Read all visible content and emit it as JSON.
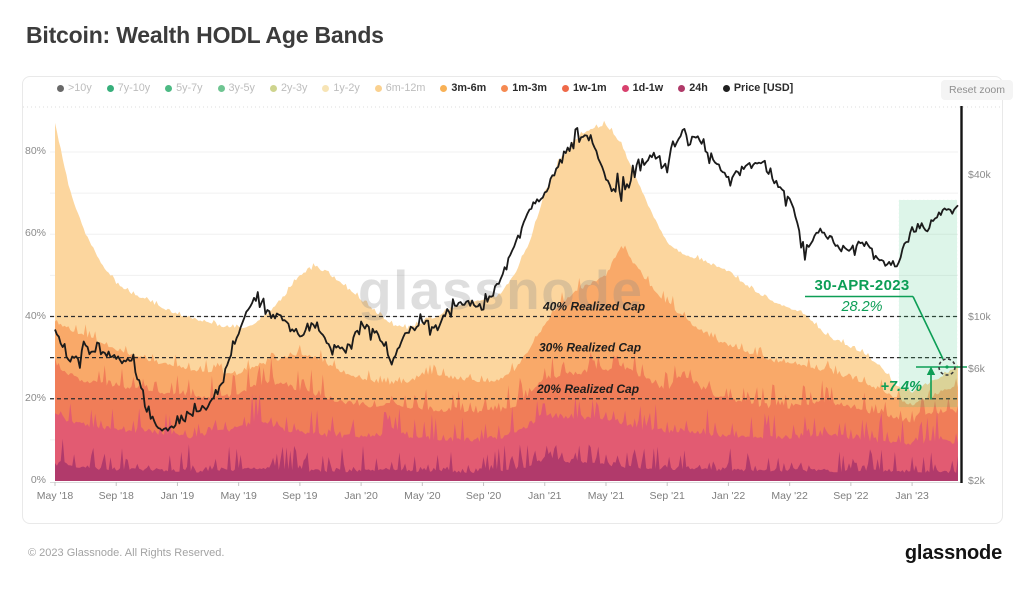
{
  "page": {
    "title": "Bitcoin: Wealth HODL Age Bands",
    "watermark": "glassnode",
    "footer_copyright": "© 2023 Glassnode. All Rights Reserved.",
    "footer_logo": "glassnode"
  },
  "toolbar": {
    "reset_zoom_label": "Reset zoom"
  },
  "legend": {
    "items": [
      {
        "label": ">10y",
        "color": "#4f4f4f",
        "active": false
      },
      {
        "label": "7y-10y",
        "color": "#14a164",
        "active": false
      },
      {
        "label": "5y-7y",
        "color": "#2eae6e",
        "active": false
      },
      {
        "label": "3y-5y",
        "color": "#56bb7f",
        "active": false
      },
      {
        "label": "2y-3y",
        "color": "#c6cc7a",
        "active": false
      },
      {
        "label": "1y-2y",
        "color": "#f6dfa8",
        "active": false
      },
      {
        "label": "6m-12m",
        "color": "#f9c97c",
        "active": false
      },
      {
        "label": "3m-6m",
        "color": "#f8b156",
        "active": true
      },
      {
        "label": "1m-3m",
        "color": "#f58a52",
        "active": true
      },
      {
        "label": "1w-1m",
        "color": "#ef6a4a",
        "active": true
      },
      {
        "label": "1d-1w",
        "color": "#d8416e",
        "active": true
      },
      {
        "label": "24h",
        "color": "#b03a69",
        "active": true
      },
      {
        "label": "Price [USD]",
        "color": "#1f1f1f",
        "active": true
      }
    ]
  },
  "annotations": {
    "accent_color": "#0d9e56",
    "highlight_color": "#35c77c",
    "realized_cap_lines": [
      {
        "pct": 40,
        "label": "40% Realized Cap"
      },
      {
        "pct": 30,
        "label": "30% Realized Cap"
      },
      {
        "pct": 20,
        "label": "20% Realized Cap"
      }
    ],
    "callout": {
      "date": "30-APR-2023",
      "value": "28.2%"
    },
    "delta": {
      "label": "+7.4%"
    }
  },
  "chart_data": {
    "type": "area",
    "stacked": true,
    "title": "Bitcoin: Wealth HODL Age Bands",
    "x_unit": "month",
    "x_range": [
      "May 2018",
      "Apr 2023"
    ],
    "x_ticks": [
      {
        "month": 0,
        "label": "May '18"
      },
      {
        "month": 4,
        "label": "Sep '18"
      },
      {
        "month": 8,
        "label": "Jan '19"
      },
      {
        "month": 12,
        "label": "May '19"
      },
      {
        "month": 16,
        "label": "Sep '19"
      },
      {
        "month": 20,
        "label": "Jan '20"
      },
      {
        "month": 24,
        "label": "May '20"
      },
      {
        "month": 28,
        "label": "Sep '20"
      },
      {
        "month": 32,
        "label": "Jan '21"
      },
      {
        "month": 36,
        "label": "May '21"
      },
      {
        "month": 40,
        "label": "Sep '21"
      },
      {
        "month": 44,
        "label": "Jan '22"
      },
      {
        "month": 48,
        "label": "May '22"
      },
      {
        "month": 52,
        "label": "Sep '22"
      },
      {
        "month": 56,
        "label": "Jan '23"
      }
    ],
    "y_left": {
      "unit": "% of Realized Cap",
      "range": [
        0,
        90
      ],
      "grid_step": 10,
      "ticks": [
        {
          "pct": 0,
          "label": "0%"
        },
        {
          "pct": 20,
          "label": "20%"
        },
        {
          "pct": 40,
          "label": "40%"
        },
        {
          "pct": 60,
          "label": "60%"
        },
        {
          "pct": 80,
          "label": "80%"
        }
      ]
    },
    "y_right": {
      "unit": "USD",
      "scale": "log",
      "range": [
        2000,
        76000
      ],
      "ticks": [
        {
          "usd": 2000,
          "label": "$2k"
        },
        {
          "usd": 6000,
          "label": "$6k"
        },
        {
          "usd": 10000,
          "label": "$10k"
        },
        {
          "usd": 40000,
          "label": "$40k"
        }
      ]
    },
    "series_note": "values are cumulative stack tops, % of realized cap, monthly May 2018 - Apr 2023, bottom band first",
    "series": [
      {
        "name": "24h",
        "color": "#b13a6b",
        "values": [
          4.0,
          3.6,
          3.3,
          3.0,
          2.8,
          2.7,
          2.8,
          2.6,
          2.5,
          2.4,
          2.4,
          2.5,
          2.8,
          3.0,
          2.9,
          2.7,
          2.6,
          2.5,
          2.4,
          2.3,
          2.5,
          2.4,
          2.8,
          2.5,
          2.4,
          2.4,
          2.3,
          2.3,
          2.2,
          2.4,
          2.8,
          3.5,
          5.5,
          5.0,
          4.5,
          4.2,
          4.0,
          3.6,
          3.2,
          3.0,
          2.9,
          3.0,
          2.9,
          2.7,
          2.6,
          2.6,
          2.5,
          2.4,
          2.6,
          2.5,
          2.7,
          2.4,
          2.3,
          2.3,
          2.6,
          2.3,
          2.2,
          2.4,
          2.2,
          2.0
        ]
      },
      {
        "name": "1d-1w",
        "color": "#e25b72",
        "values": [
          16,
          14.5,
          13.5,
          13,
          12.5,
          12,
          12.5,
          11.5,
          11,
          10.8,
          11.5,
          12,
          13,
          14,
          14,
          12.5,
          12,
          11.5,
          11,
          10.8,
          11,
          10.5,
          12.5,
          10.8,
          10.5,
          10.3,
          10,
          10,
          10,
          10.5,
          11.5,
          13.5,
          16,
          15.5,
          15,
          15,
          15,
          14,
          13,
          12.5,
          12,
          12.5,
          11.8,
          11.2,
          11,
          10.8,
          10.6,
          10.4,
          10.5,
          10.8,
          11.5,
          11,
          10.5,
          10,
          9.5,
          9.2,
          9,
          9.8,
          10,
          9
        ]
      },
      {
        "name": "1w-1m",
        "color": "#f07d58",
        "values": [
          28,
          25.5,
          24,
          23.5,
          23,
          22.5,
          22,
          21.5,
          21,
          20.5,
          20.3,
          20.5,
          21,
          23,
          24,
          23.5,
          22,
          21,
          20,
          18.8,
          18.5,
          18,
          19,
          17.8,
          17.5,
          17.2,
          17,
          16.8,
          16.5,
          17,
          18,
          21,
          25,
          25.5,
          26,
          26.5,
          27,
          28,
          26,
          24,
          22,
          26,
          23,
          21,
          20,
          19,
          18.2,
          18,
          18,
          18.5,
          19,
          18.5,
          18,
          17,
          16,
          15,
          14.5,
          16,
          17,
          17
        ]
      },
      {
        "name": "1m-3m",
        "color": "#f9a969",
        "values": [
          39,
          36.5,
          35,
          33.5,
          32,
          30.5,
          29.5,
          28.5,
          28,
          27,
          26.5,
          26,
          26,
          27.5,
          29,
          30,
          31,
          30,
          28,
          26,
          25,
          24,
          23.5,
          24,
          25.5,
          26,
          25,
          24.5,
          24,
          24.5,
          27,
          32,
          38,
          43,
          46,
          48,
          50,
          57,
          52,
          47,
          43,
          40,
          37,
          34.5,
          33,
          31.5,
          30,
          29,
          28.5,
          28,
          27,
          26,
          25,
          23.5,
          22,
          20,
          18.5,
          20,
          22,
          23
        ]
      },
      {
        "name": "3m-6m",
        "color": "#fcd69e",
        "values": [
          87,
          70,
          60,
          53,
          48,
          45.5,
          44,
          42,
          40.5,
          39.5,
          38.5,
          37.5,
          37,
          38,
          41,
          45,
          50,
          52,
          50,
          47,
          44,
          41,
          38,
          37,
          38.5,
          40,
          42,
          43.5,
          44,
          45,
          50,
          58,
          70,
          78,
          83,
          85.5,
          86.5,
          82,
          73,
          65,
          58,
          55,
          54,
          52.5,
          51,
          48,
          45.5,
          43.5,
          42,
          40.5,
          36.5,
          34,
          32.5,
          30.5,
          27.5,
          23,
          21.5,
          23.5,
          25.5,
          28.2
        ]
      }
    ],
    "price": {
      "name": "Price [USD]",
      "color": "#1b1b1b",
      "scale": "log",
      "values": [
        8700,
        6400,
        7400,
        7000,
        6600,
        6500,
        4000,
        3250,
        3450,
        3850,
        4100,
        5300,
        8600,
        12000,
        10500,
        9600,
        8300,
        9200,
        7550,
        7200,
        9350,
        8600,
        6400,
        8650,
        9450,
        9150,
        11100,
        11650,
        10800,
        13800,
        19600,
        28900,
        33100,
        45200,
        58800,
        57700,
        37300,
        35000,
        41500,
        47100,
        43800,
        61300,
        57000,
        46200,
        38500,
        43200,
        45500,
        37700,
        31800,
        19000,
        23300,
        20000,
        19400,
        20500,
        17100,
        16550,
        23100,
        23500,
        28500,
        29300
      ]
    },
    "end_point": {
      "date": "30-APR-2023",
      "total_pct": 28.2,
      "price_usd": 29300
    }
  }
}
